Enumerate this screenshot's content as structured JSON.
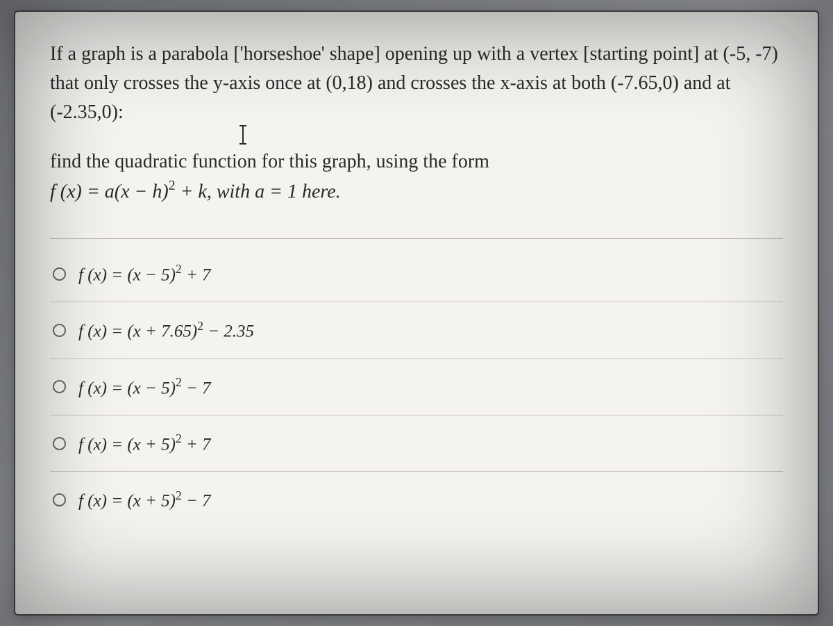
{
  "question": {
    "body": "If a graph is a parabola ['horseshoe' shape] opening up with a vertex [starting point] at (-5, -7) that only crosses the y-axis once at (0,18) and crosses the x-axis at both (-7.65,0) and at (-2.35,0):",
    "prompt_lead": "find the quadratic function for this graph, using  the form",
    "formula": {
      "lhs": "f (x) = a(x − h)",
      "exp": "2",
      "mid": " + k,  with a  =  ",
      "rhs": "1 here."
    }
  },
  "options": [
    {
      "text_a": "f (x) = (x − 5)",
      "exp": "2",
      "text_b": " + 7"
    },
    {
      "text_a": "f (x) = (x + 7.65)",
      "exp": "2",
      "text_b": " − 2.35"
    },
    {
      "text_a": "f (x) = (x − 5)",
      "exp": "2",
      "text_b": " − 7"
    },
    {
      "text_a": "f (x) = (x + 5)",
      "exp": "2",
      "text_b": " + 7"
    },
    {
      "text_a": "f (x) = (x + 5)",
      "exp": "2",
      "text_b": " − 7"
    }
  ],
  "styling": {
    "page_bg": "#f5f3f0",
    "body_bg_start": "#8a8d93",
    "body_bg_end": "#9a9da3",
    "text_color": "#2a2a2a",
    "divider_color": "#c8c5c0",
    "border_color": "#4a4a4a",
    "question_fontsize": 28,
    "option_fontsize": 25,
    "radio_border": "#6a6a6a"
  }
}
